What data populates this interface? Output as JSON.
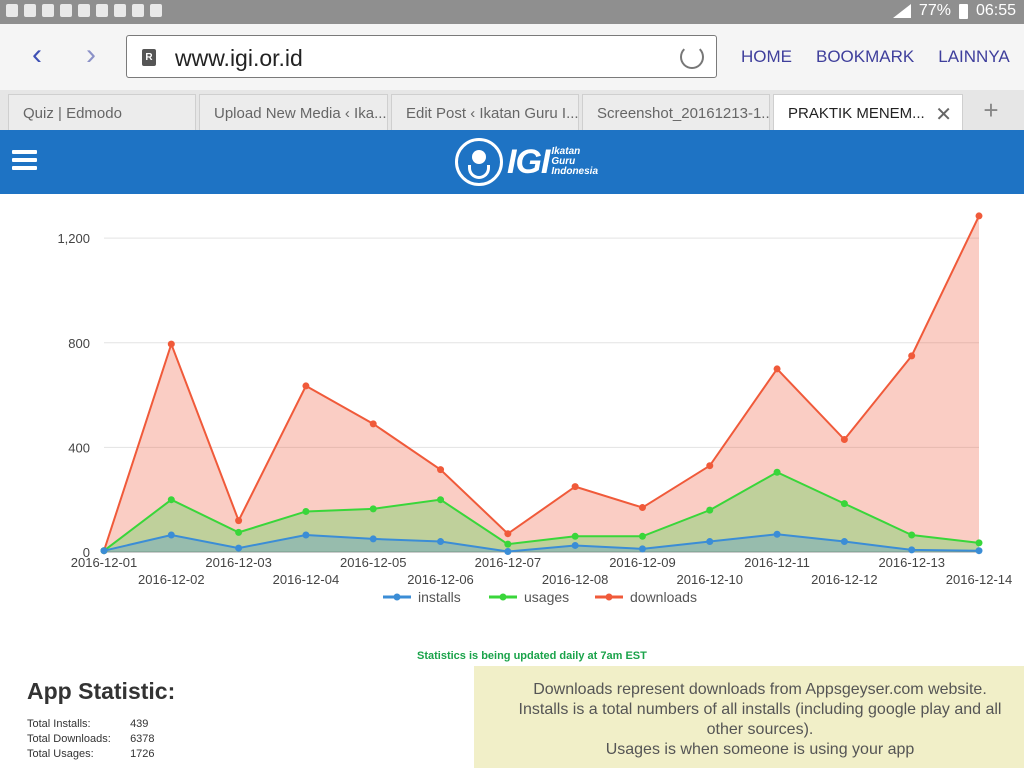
{
  "statusbar": {
    "battery": "77%",
    "time": "06:55"
  },
  "browser": {
    "url": "www.igi.or.id",
    "menu": [
      "HOME",
      "BOOKMARK",
      "LAINNYA"
    ],
    "tabs": [
      {
        "label": "Quiz | Edmodo"
      },
      {
        "label": "Upload New Media ‹ Ika..."
      },
      {
        "label": "Edit Post ‹ Ikatan Guru I..."
      },
      {
        "label": "Screenshot_20161213-1..."
      },
      {
        "label": "PRAKTIK MENEM..."
      }
    ]
  },
  "site": {
    "logo_text": "IGI",
    "logo_sub": [
      "Ikatan",
      "Guru",
      "Indonesia"
    ],
    "brand_color": "#1e73c4"
  },
  "chart_data": {
    "type": "area",
    "categories": [
      "2016-12-01",
      "2016-12-02",
      "2016-12-03",
      "2016-12-04",
      "2016-12-05",
      "2016-12-06",
      "2016-12-07",
      "2016-12-08",
      "2016-12-09",
      "2016-12-10",
      "2016-12-11",
      "2016-12-12",
      "2016-12-13",
      "2016-12-14"
    ],
    "series": [
      {
        "name": "installs",
        "color": "#3b8dd6",
        "values": [
          5,
          65,
          15,
          65,
          50,
          40,
          2,
          25,
          12,
          40,
          68,
          40,
          8,
          5
        ]
      },
      {
        "name": "usages",
        "color": "#39d63a",
        "values": [
          5,
          200,
          75,
          155,
          165,
          200,
          30,
          60,
          60,
          160,
          305,
          185,
          65,
          35
        ]
      },
      {
        "name": "downloads",
        "color": "#f05a3a",
        "values": [
          5,
          795,
          120,
          635,
          490,
          315,
          70,
          250,
          170,
          330,
          700,
          430,
          750,
          1285
        ]
      }
    ],
    "yticks": [
      "0",
      "400",
      "800",
      "1,200"
    ],
    "ylim": [
      0,
      1300
    ],
    "legend": "bottom"
  },
  "update_note": "Statistics is being updated daily at 7am EST",
  "app_statistic": {
    "title": "App Statistic:",
    "rows": [
      {
        "label": "Total Installs:",
        "value": "439"
      },
      {
        "label": "Total Downloads:",
        "value": "6378"
      },
      {
        "label": "Total Usages:",
        "value": "1726"
      }
    ]
  },
  "info_text": [
    "Downloads represent downloads from Appsgeyser.com website.",
    "Installs is a total numbers of all installs (including google play and all other sources).",
    "Usages is when someone is using your app"
  ]
}
